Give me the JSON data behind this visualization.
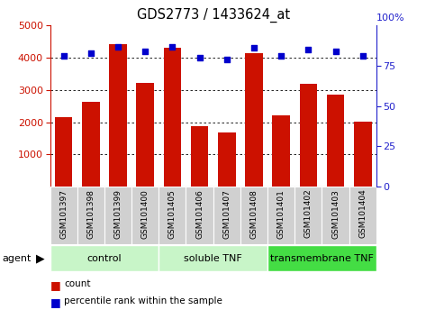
{
  "title": "GDS2773 / 1433624_at",
  "samples": [
    "GSM101397",
    "GSM101398",
    "GSM101399",
    "GSM101400",
    "GSM101405",
    "GSM101406",
    "GSM101407",
    "GSM101408",
    "GSM101401",
    "GSM101402",
    "GSM101403",
    "GSM101404"
  ],
  "counts": [
    2150,
    2620,
    4420,
    3230,
    4310,
    1870,
    1680,
    4150,
    2200,
    3200,
    2860,
    2020
  ],
  "percentiles": [
    81,
    83,
    87,
    84,
    87,
    80,
    79,
    86,
    81,
    85,
    84,
    81
  ],
  "groups": [
    {
      "label": "control",
      "start": 0,
      "end": 4,
      "color": "#c8f5c8"
    },
    {
      "label": "soluble TNF",
      "start": 4,
      "end": 8,
      "color": "#c8f5c8"
    },
    {
      "label": "transmembrane TNF",
      "start": 8,
      "end": 12,
      "color": "#44dd44"
    }
  ],
  "bar_color": "#cc1100",
  "dot_color": "#0000cc",
  "ylim_left": [
    0,
    5000
  ],
  "ylim_right": [
    0,
    100
  ],
  "yticks_left": [
    1000,
    2000,
    3000,
    4000,
    5000
  ],
  "yticks_right": [
    0,
    25,
    50,
    75
  ],
  "axis_color_left": "#cc1100",
  "axis_color_right": "#2222cc",
  "legend_count_color": "#cc1100",
  "legend_pct_color": "#0000cc"
}
